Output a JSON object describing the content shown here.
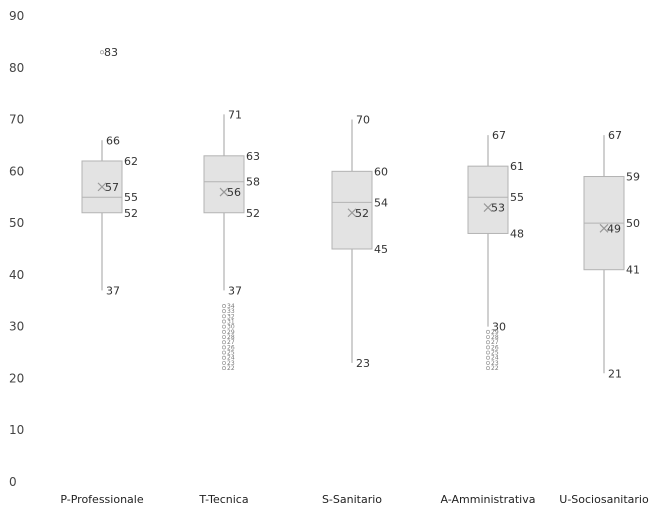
{
  "chart_data": {
    "type": "box",
    "title": "",
    "xlabel": "",
    "ylabel": "",
    "ylim": [
      0,
      90
    ],
    "yticks": [
      0,
      10,
      20,
      30,
      40,
      50,
      60,
      70,
      80,
      90
    ],
    "grid": false,
    "legend": "none",
    "colors": {
      "box_fill": "#e3e3e3",
      "box_stroke": "#b3b3b3",
      "whisker": "#a0a0a0",
      "mean_marker": "#999999",
      "text": "#333333"
    },
    "categories": [
      "P-Professionale",
      "T-Tecnica",
      "S-Sanitario",
      "A-Amministrativa",
      "U-Sociosanitario"
    ],
    "boxes": [
      {
        "category": "P-Professionale",
        "min": 37,
        "q1": 52,
        "median": 55,
        "mean": 57,
        "q3": 62,
        "max": 66,
        "outliers": [
          83
        ]
      },
      {
        "category": "T-Tecnica",
        "min": 37,
        "q1": 52,
        "median": 58,
        "mean": 56,
        "q3": 63,
        "max": 71,
        "outliers": [
          34,
          33,
          32,
          31,
          30,
          29,
          28,
          27,
          26,
          25,
          24,
          23,
          22
        ]
      },
      {
        "category": "S-Sanitario",
        "min": 23,
        "q1": 45,
        "median": 54,
        "mean": 52,
        "q3": 60,
        "max": 70,
        "outliers": []
      },
      {
        "category": "A-Amministrativa",
        "min": 30,
        "q1": 48,
        "median": 55,
        "mean": 53,
        "q3": 61,
        "max": 67,
        "outliers": [
          29,
          28,
          27,
          26,
          25,
          24,
          23,
          22
        ]
      },
      {
        "category": "U-Sociosanitario",
        "min": 21,
        "q1": 41,
        "median": 50,
        "mean": 49,
        "q3": 59,
        "max": 67,
        "outliers": []
      }
    ]
  }
}
